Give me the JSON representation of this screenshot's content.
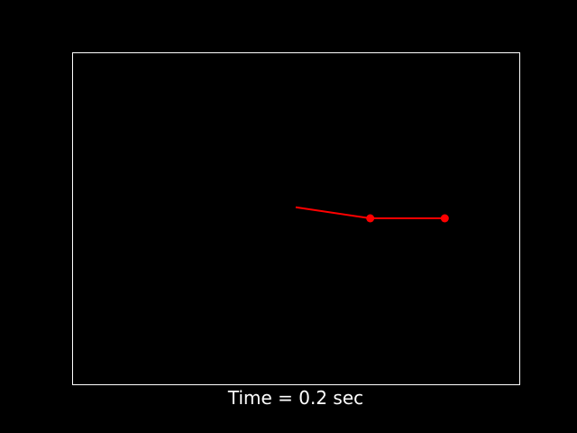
{
  "chart_data": {
    "type": "line",
    "title": "",
    "xlabel": "Time = 0.2 sec",
    "ylabel": "",
    "grid": false,
    "legend": "none",
    "xlim": [
      -3,
      3
    ],
    "ylim": [
      -2.25,
      2.25
    ],
    "series": [
      {
        "x": [
          0,
          1.0,
          2.0
        ],
        "y": [
          0.15,
          0.0,
          0.0
        ],
        "markers": [
          false,
          true,
          true
        ]
      }
    ]
  },
  "colors": {
    "background": "#000000",
    "axes_frame": "#ffffff",
    "line": "#ff0000",
    "text": "#ffffff"
  }
}
